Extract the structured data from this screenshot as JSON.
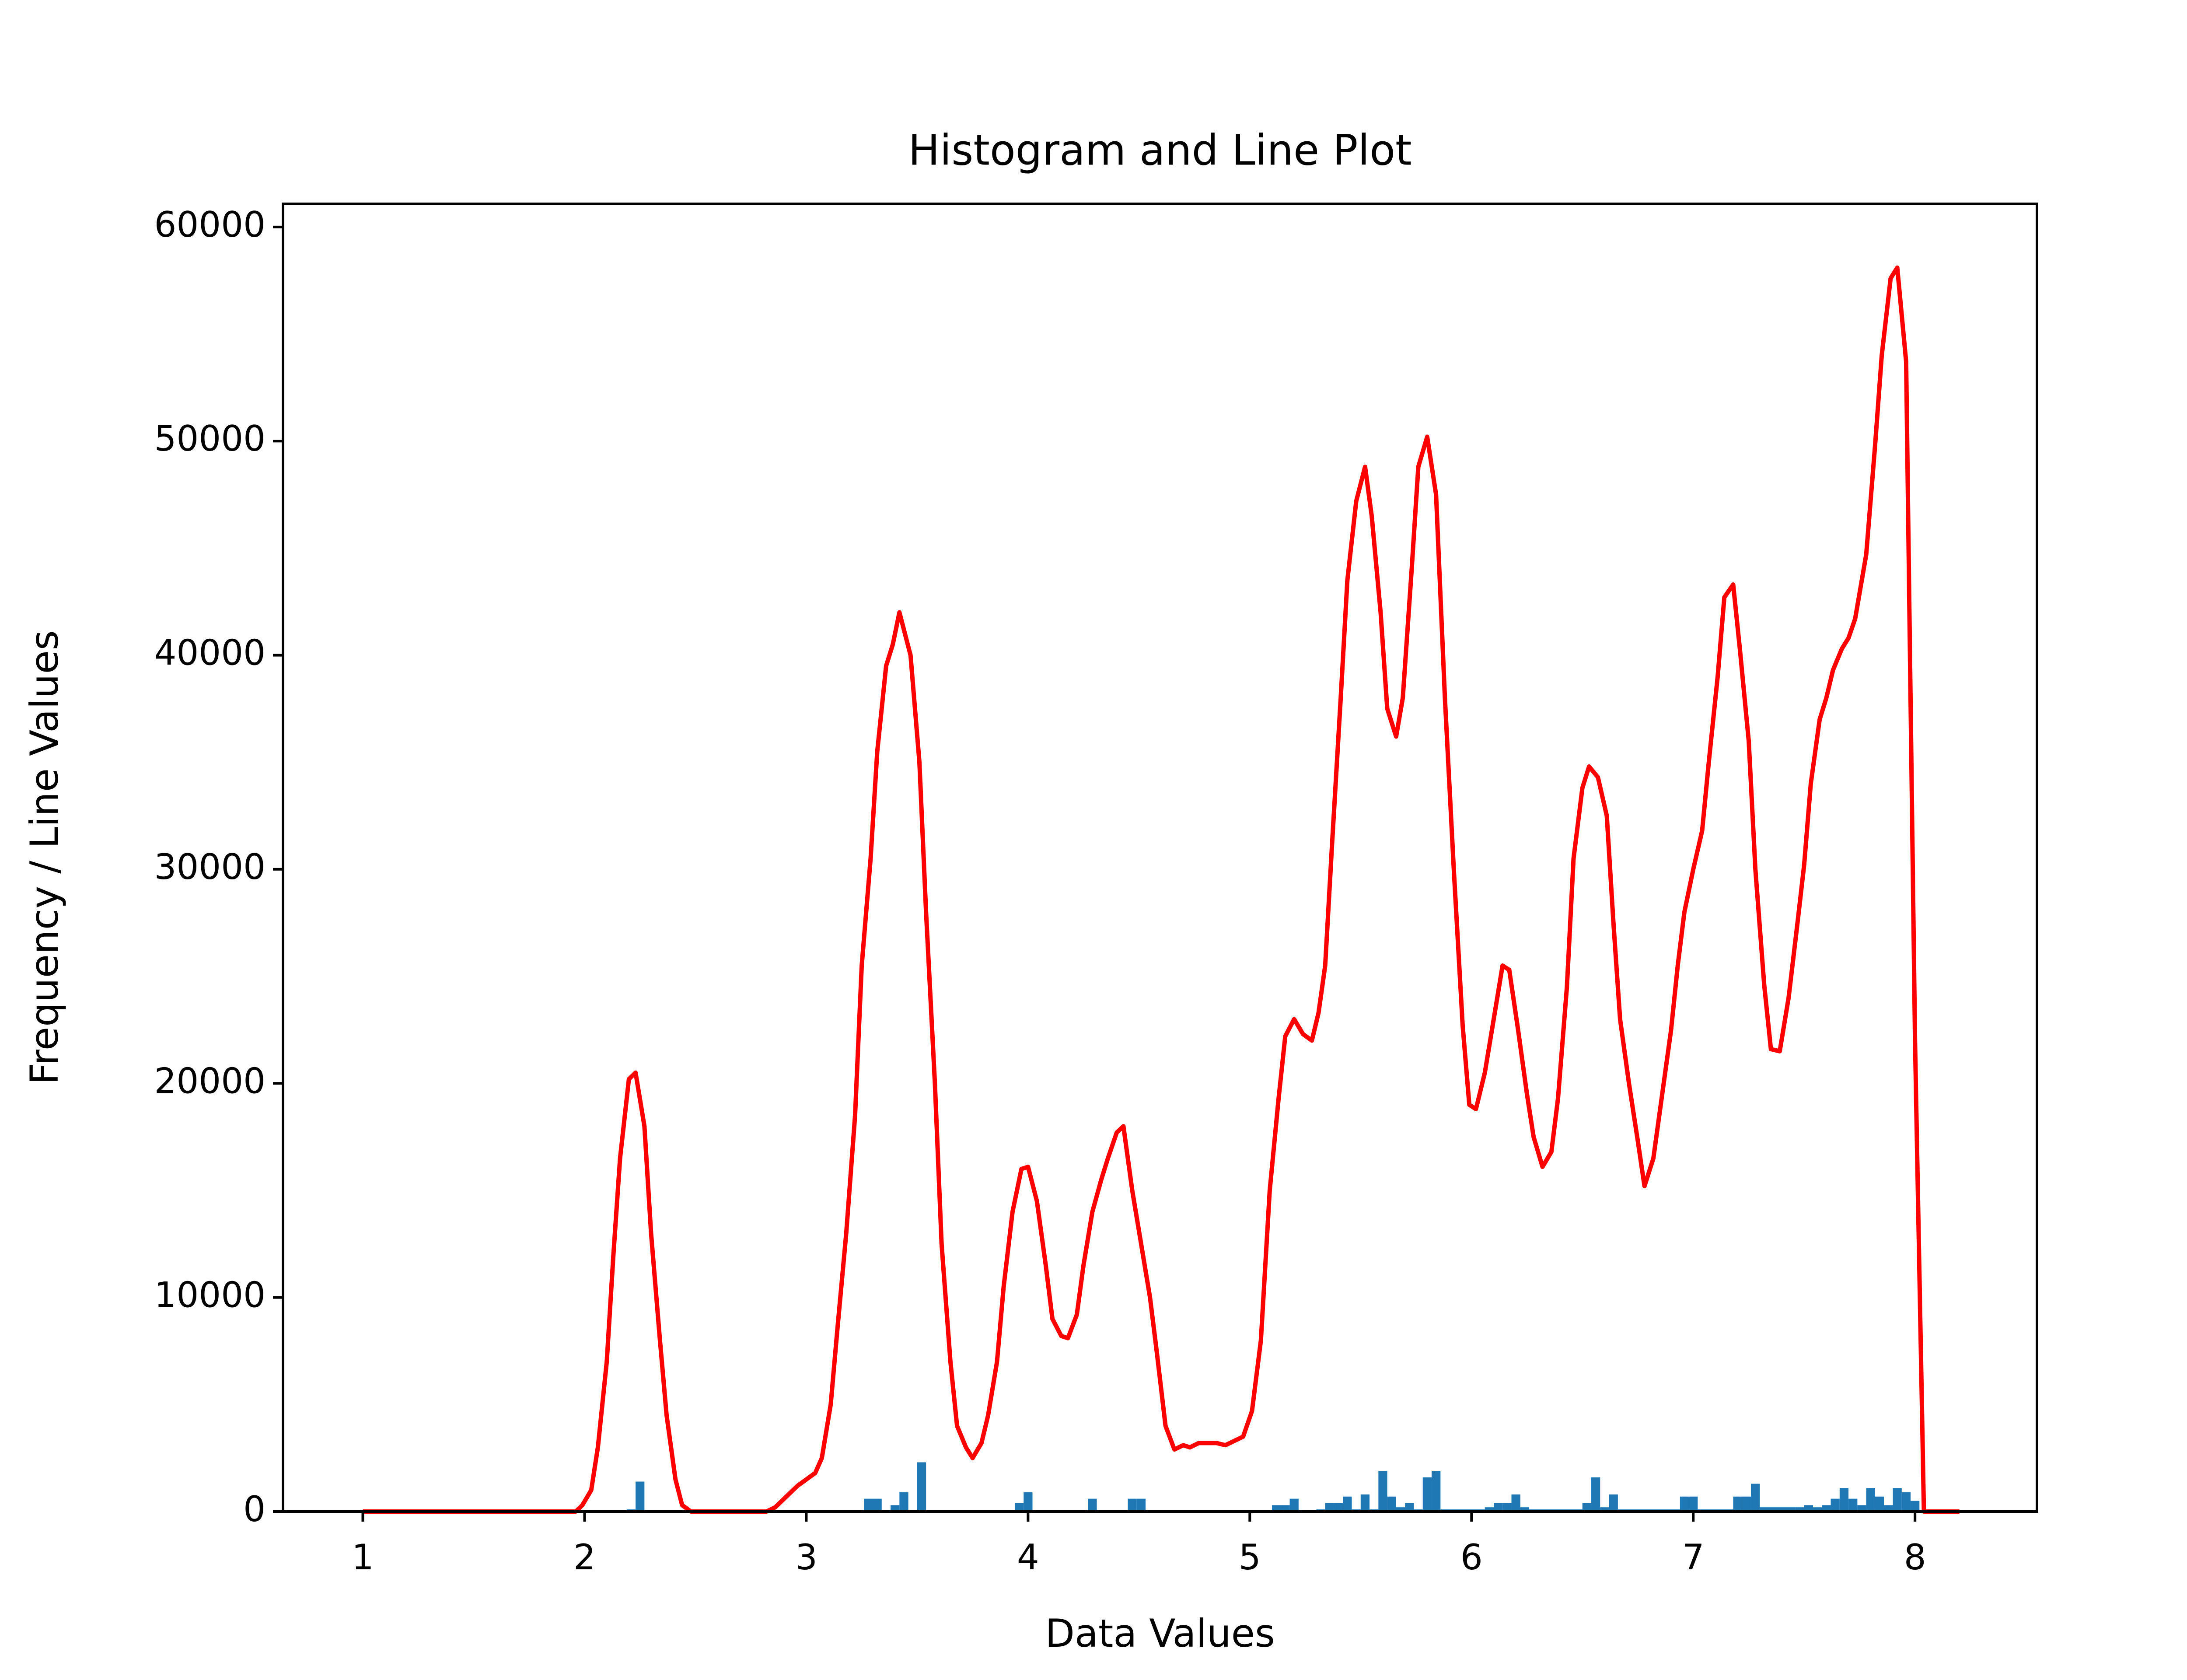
{
  "chart_data": {
    "type": "histogram",
    "title": "Histogram and Line Plot",
    "x_label": "Data Values",
    "y_label": "Frequency / Line Values",
    "bins": [
      2.19,
      2.23,
      2.27,
      3.26,
      3.3,
      3.34,
      3.38,
      3.42,
      3.46,
      3.5,
      3.54,
      3.94,
      3.98,
      4.02,
      4.27,
      4.31,
      4.45,
      4.49,
      4.53,
      5.1,
      5.14,
      5.18,
      5.22,
      5.3,
      5.34,
      5.38,
      5.42,
      5.46,
      5.5,
      5.54,
      5.58,
      5.62,
      5.66,
      5.7,
      5.74,
      5.78,
      5.82,
      5.86,
      5.9,
      6.06,
      6.1,
      6.14,
      6.18,
      6.22,
      6.26,
      6.5,
      6.54,
      6.58,
      6.62,
      6.66,
      6.94,
      6.98,
      7.02,
      7.18,
      7.22,
      7.26,
      7.3,
      7.46,
      7.5,
      7.54,
      7.58,
      7.62,
      7.66,
      7.7,
      7.74,
      7.78,
      7.82,
      7.86,
      7.9,
      7.94,
      7.98,
      8.02
    ],
    "values": [
      100,
      1400,
      0,
      600,
      600,
      0,
      300,
      900,
      0,
      2300,
      0,
      400,
      900,
      0,
      600,
      0,
      600,
      600,
      0,
      300,
      300,
      600,
      0,
      100,
      400,
      400,
      700,
      100,
      800,
      100,
      1900,
      700,
      200,
      400,
      100,
      1600,
      1900,
      100,
      100,
      200,
      400,
      400,
      800,
      200,
      100,
      400,
      1600,
      200,
      800,
      100,
      700,
      700,
      100,
      700,
      700,
      1300,
      200,
      200,
      300,
      200,
      300,
      600,
      1100,
      600,
      300,
      1100,
      700,
      300,
      1100,
      900,
      500
    ],
    "color": "#1f77b4",
    "line": {
      "type": "line",
      "color": "#ff0000",
      "x": [
        1.0,
        1.96,
        1.99,
        2.03,
        2.06,
        2.1,
        2.13,
        2.16,
        2.2,
        2.23,
        2.27,
        2.3,
        2.34,
        2.37,
        2.41,
        2.44,
        2.48,
        2.82,
        2.86,
        2.89,
        2.93,
        2.96,
        3.0,
        3.04,
        3.07,
        3.11,
        3.14,
        3.18,
        3.22,
        3.25,
        3.29,
        3.32,
        3.36,
        3.39,
        3.42,
        3.47,
        3.51,
        3.54,
        3.58,
        3.61,
        3.65,
        3.68,
        3.72,
        3.75,
        3.79,
        3.82,
        3.86,
        3.89,
        3.93,
        3.97,
        4.0,
        4.04,
        4.08,
        4.11,
        4.15,
        4.18,
        4.22,
        4.25,
        4.29,
        4.33,
        4.36,
        4.4,
        4.43,
        4.47,
        4.51,
        4.55,
        4.58,
        4.62,
        4.66,
        4.7,
        4.73,
        4.77,
        4.81,
        4.85,
        4.89,
        4.93,
        4.97,
        5.01,
        5.05,
        5.09,
        5.13,
        5.16,
        5.2,
        5.24,
        5.28,
        5.31,
        5.34,
        5.37,
        5.41,
        5.44,
        5.48,
        5.52,
        5.55,
        5.59,
        5.62,
        5.66,
        5.69,
        5.73,
        5.76,
        5.8,
        5.84,
        5.88,
        5.92,
        5.96,
        5.99,
        6.02,
        6.06,
        6.1,
        6.14,
        6.17,
        6.21,
        6.25,
        6.28,
        6.32,
        6.36,
        6.39,
        6.43,
        6.46,
        6.5,
        6.53,
        6.57,
        6.61,
        6.64,
        6.67,
        6.71,
        6.75,
        6.78,
        6.82,
        6.86,
        6.9,
        6.93,
        6.96,
        7.0,
        7.04,
        7.07,
        7.11,
        7.14,
        7.18,
        7.21,
        7.25,
        7.28,
        7.32,
        7.35,
        7.39,
        7.43,
        7.47,
        7.5,
        7.53,
        7.57,
        7.6,
        7.63,
        7.67,
        7.7,
        7.73,
        7.78,
        7.82,
        7.85,
        7.89,
        7.92,
        7.96,
        8.0,
        8.04,
        8.2
      ],
      "values": [
        0,
        0,
        300,
        1000,
        3000,
        7000,
        12000,
        16500,
        20200,
        20500,
        18000,
        13000,
        8000,
        4500,
        1500,
        300,
        0,
        0,
        200,
        500,
        900,
        1200,
        1500,
        1800,
        2500,
        5000,
        8500,
        13000,
        18500,
        25500,
        30500,
        35500,
        39500,
        40500,
        42000,
        40000,
        35000,
        28000,
        20000,
        12500,
        7000,
        4000,
        3000,
        2500,
        3200,
        4500,
        7000,
        10500,
        14000,
        16000,
        16100,
        14500,
        11500,
        9000,
        8200,
        8100,
        9200,
        11500,
        14000,
        15500,
        16500,
        17700,
        18000,
        15000,
        12500,
        10000,
        7500,
        4000,
        2900,
        3100,
        3000,
        3200,
        3200,
        3200,
        3100,
        3300,
        3500,
        4700,
        8000,
        15000,
        19300,
        22200,
        23000,
        22300,
        22000,
        23300,
        25500,
        31000,
        38000,
        43500,
        47200,
        48800,
        46500,
        42000,
        37500,
        36200,
        38000,
        44000,
        48800,
        50200,
        47500,
        38000,
        30000,
        22700,
        19000,
        18800,
        20500,
        23000,
        25500,
        25300,
        22500,
        19500,
        17500,
        16100,
        16800,
        19300,
        24500,
        30500,
        33800,
        34800,
        34300,
        32500,
        27500,
        23000,
        20000,
        17300,
        15200,
        16500,
        19500,
        22500,
        25500,
        28000,
        30000,
        31800,
        35000,
        39000,
        42700,
        43300,
        40300,
        36000,
        30000,
        24600,
        21600,
        21500,
        24000,
        27500,
        30200,
        34000,
        37000,
        38000,
        39300,
        40300,
        40800,
        41700,
        44700,
        49800,
        54000,
        57600,
        58100,
        53700,
        22000,
        0,
        0
      ]
    },
    "xlim": [
      0.64,
      8.55
    ],
    "ylim": [
      0,
      61080
    ],
    "xticks": [
      1,
      2,
      3,
      4,
      5,
      6,
      7,
      8
    ],
    "yticks": [
      0,
      10000,
      20000,
      30000,
      40000,
      50000,
      60000
    ]
  }
}
